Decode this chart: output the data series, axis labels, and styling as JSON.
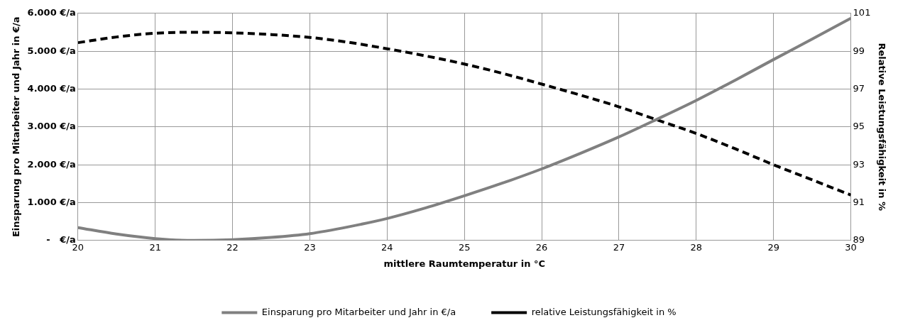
{
  "chart_data": {
    "type": "line",
    "xlabel": "mittlere Raumtemperatur in °C",
    "ylabel": "Einsparung pro Mitarbeiter und Jahr in €/a",
    "y2label": "Relative Leistungsfähigkeit in %",
    "x": [
      20,
      20.5,
      21,
      21.5,
      22,
      22.5,
      23,
      23.5,
      24,
      24.5,
      25,
      25.5,
      26,
      26.5,
      27,
      27.5,
      28,
      28.5,
      29,
      29.5,
      30
    ],
    "series": [
      {
        "name": "Einsparung pro Mitarbeiter und Jahr in €/a",
        "color": "#808080",
        "line_style": "solid",
        "values": [
          340,
          170,
          50,
          0,
          20,
          80,
          180,
          360,
          580,
          860,
          1180,
          1520,
          1890,
          2300,
          2735,
          3210,
          3700,
          4230,
          4780,
          5320,
          5870
        ]
      },
      {
        "name": "relative Leistungsfähigkeit in %",
        "color": "#000000",
        "line_style": "dashed",
        "axis": "y2",
        "values": [
          99.45,
          99.75,
          99.95,
          100.0,
          99.97,
          99.88,
          99.73,
          99.47,
          99.13,
          98.75,
          98.32,
          97.82,
          97.26,
          96.68,
          96.06,
          95.36,
          94.65,
          93.85,
          93.0,
          92.2,
          91.4
        ]
      }
    ],
    "xlim": [
      20,
      30
    ],
    "xticks": [
      20,
      21,
      22,
      23,
      24,
      25,
      26,
      27,
      28,
      29,
      30
    ],
    "ylim": [
      0,
      6000
    ],
    "yticks": [
      {
        "value": 0,
        "label": "-   €/a"
      },
      {
        "value": 1000,
        "label": "1.000 €/a"
      },
      {
        "value": 2000,
        "label": "2.000 €/a"
      },
      {
        "value": 3000,
        "label": "3.000 €/a"
      },
      {
        "value": 4000,
        "label": "4.000 €/a"
      },
      {
        "value": 5000,
        "label": "5.000 €/a"
      },
      {
        "value": 6000,
        "label": "6.000 €/a"
      }
    ],
    "y2lim": [
      89,
      101
    ],
    "y2ticks": [
      89,
      91,
      93,
      95,
      97,
      99,
      101
    ],
    "grid": true,
    "legend": "bottom",
    "marker": "none"
  }
}
